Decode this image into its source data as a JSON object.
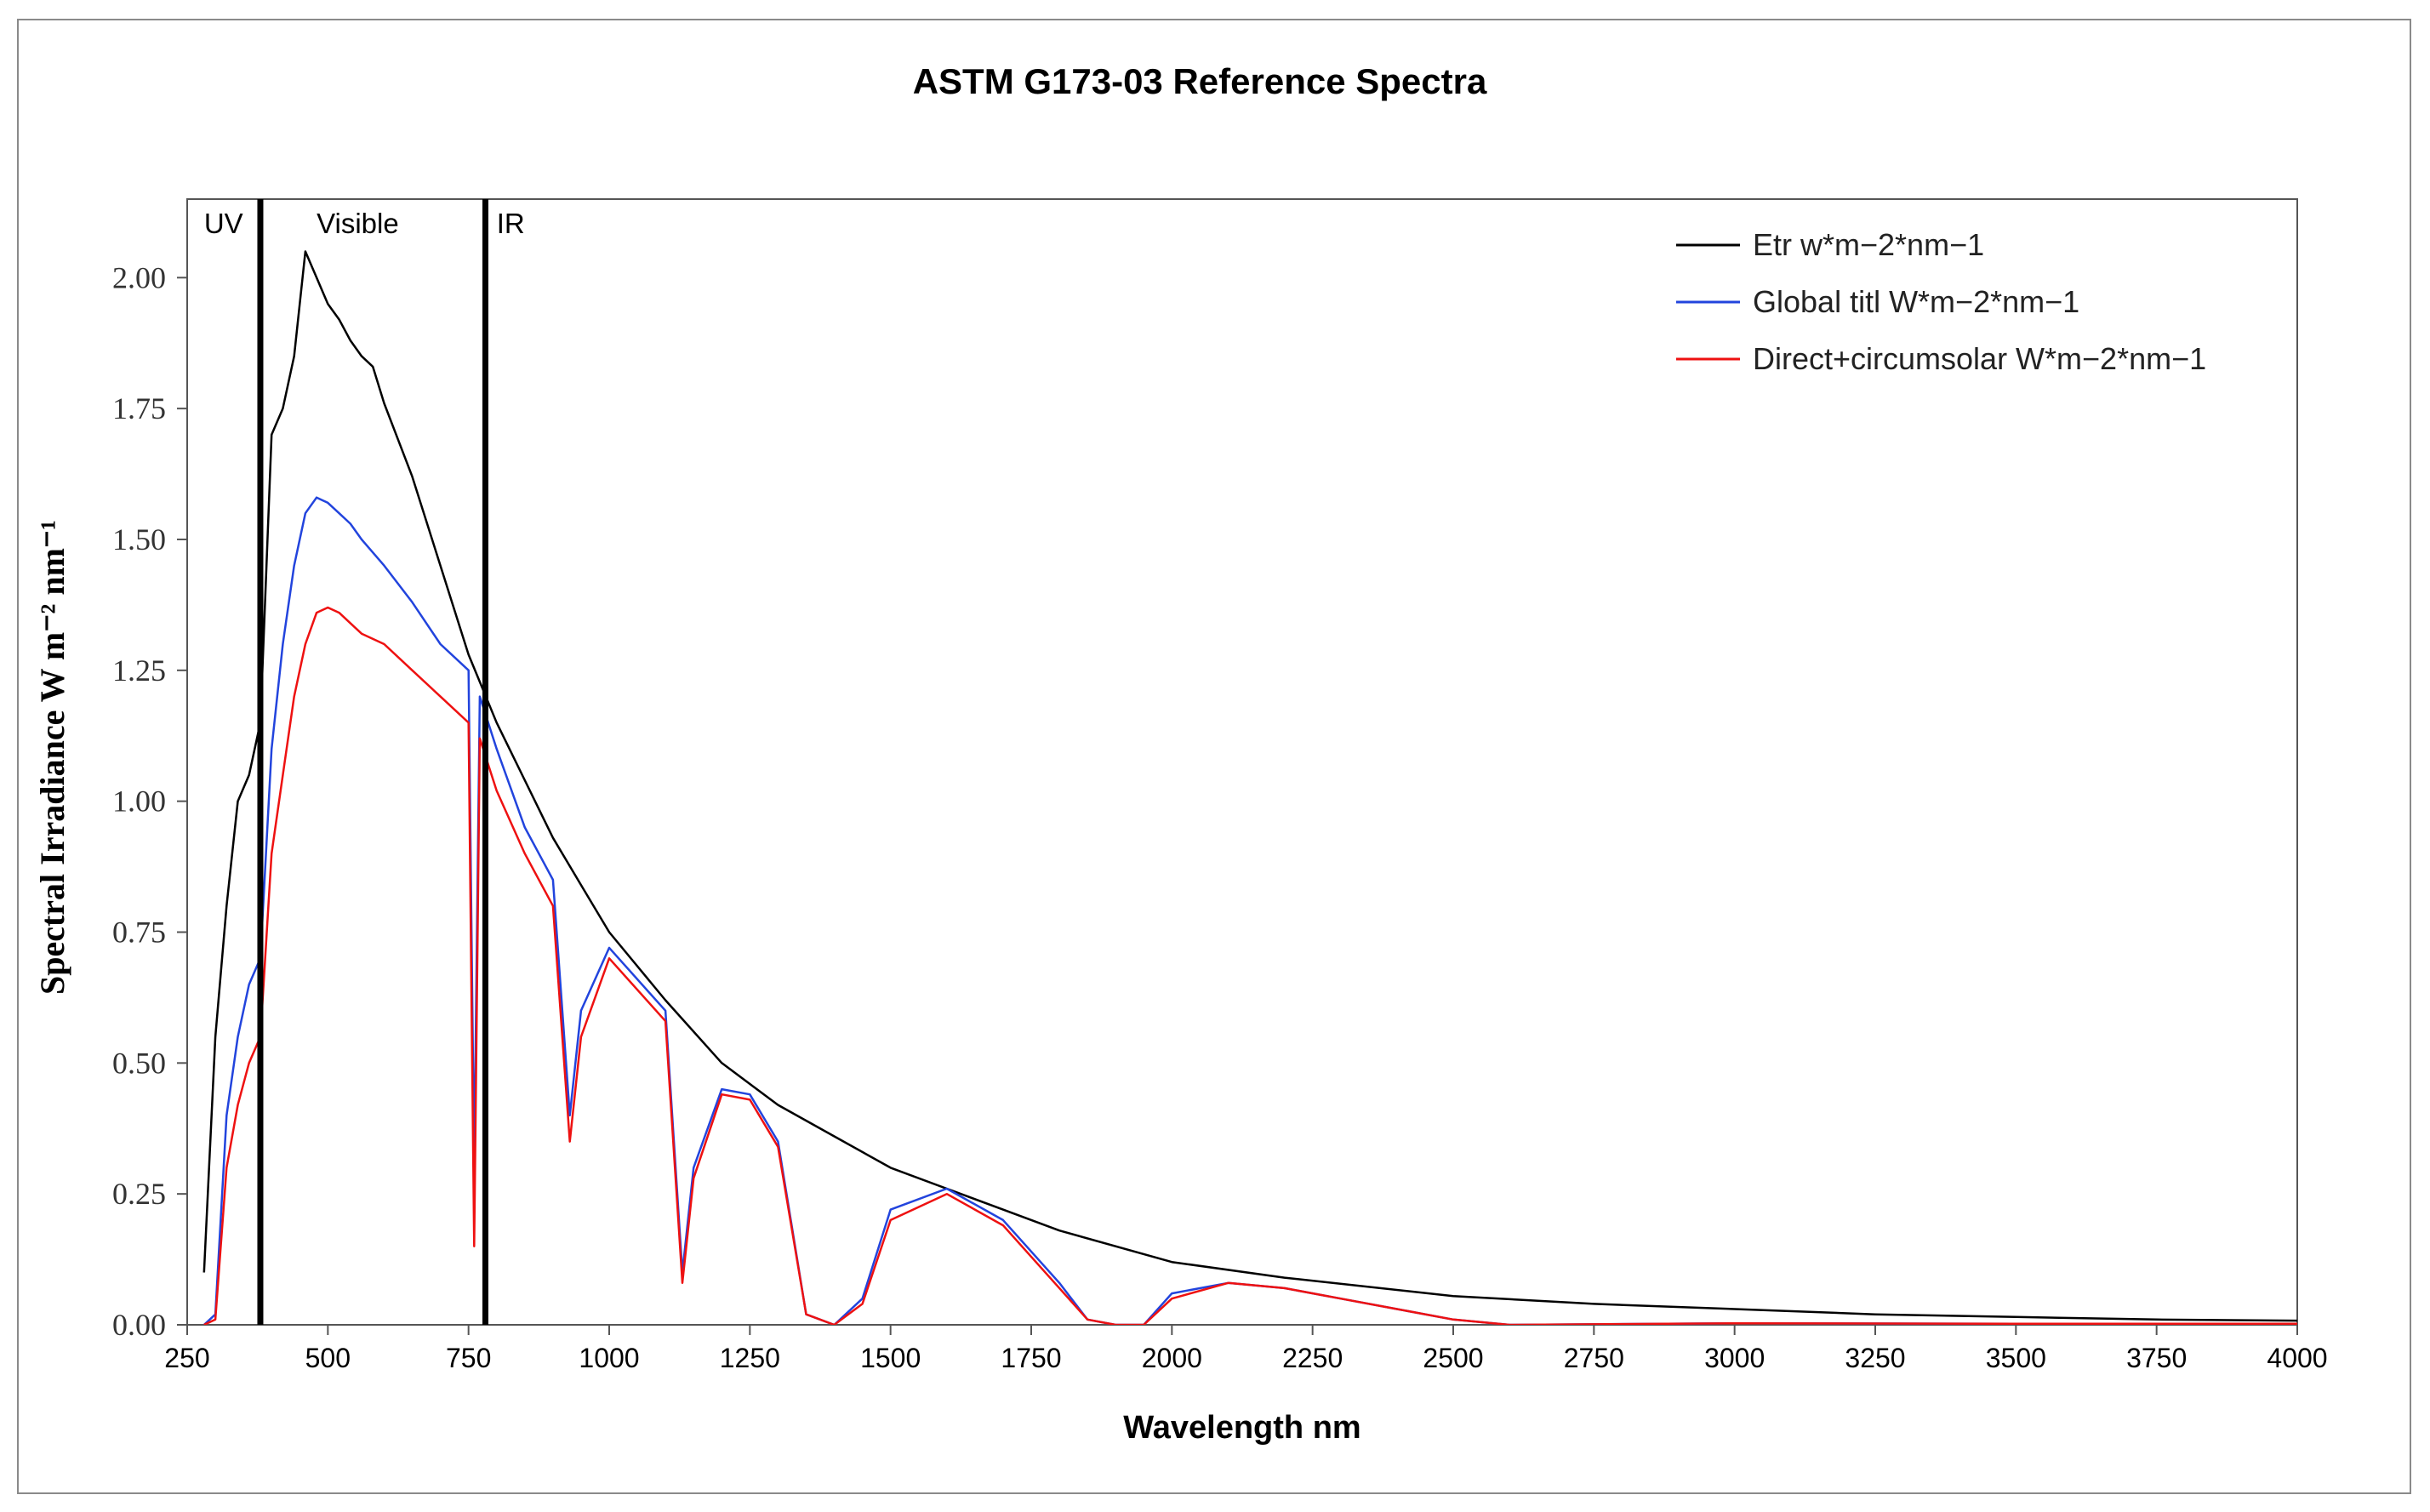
{
  "chart_data": {
    "type": "line",
    "title": "ASTM G173-03 Reference Spectra",
    "xlabel": "Wavelength nm",
    "ylabel": "Spectral Irradiance W m⁻² nm⁻¹",
    "xlim": [
      250,
      4000
    ],
    "ylim": [
      0,
      2.15
    ],
    "xticks": [
      "250",
      "500",
      "750",
      "1000",
      "1250",
      "1500",
      "1750",
      "2000",
      "2250",
      "2500",
      "2750",
      "3000",
      "3250",
      "3500",
      "3750",
      "4000"
    ],
    "yticks": [
      "0.00",
      "0.25",
      "0.50",
      "0.75",
      "1.00",
      "1.25",
      "1.50",
      "1.75",
      "2.00"
    ],
    "grid": false,
    "legend_position": "top-right",
    "region_dividers": [
      380,
      780
    ],
    "regions": [
      {
        "label": "UV",
        "x": 280
      },
      {
        "label": "Visible",
        "x": 480
      },
      {
        "label": "IR",
        "x": 800
      }
    ],
    "series": [
      {
        "name": "Etr w*m−2*nm−1",
        "color": "#000000",
        "x": [
          280,
          300,
          320,
          340,
          360,
          380,
          400,
          420,
          440,
          460,
          480,
          500,
          520,
          540,
          560,
          580,
          600,
          650,
          700,
          750,
          800,
          850,
          900,
          950,
          1000,
          1100,
          1200,
          1300,
          1400,
          1500,
          1600,
          1700,
          1800,
          2000,
          2200,
          2500,
          2750,
          3000,
          3250,
          3500,
          3750,
          4000
        ],
        "values": [
          0.1,
          0.55,
          0.8,
          1.0,
          1.05,
          1.15,
          1.7,
          1.75,
          1.85,
          2.05,
          2.0,
          1.95,
          1.92,
          1.88,
          1.85,
          1.83,
          1.76,
          1.62,
          1.45,
          1.28,
          1.15,
          1.04,
          0.93,
          0.84,
          0.75,
          0.62,
          0.5,
          0.42,
          0.36,
          0.3,
          0.26,
          0.22,
          0.18,
          0.12,
          0.09,
          0.055,
          0.04,
          0.03,
          0.02,
          0.015,
          0.01,
          0.008
        ]
      },
      {
        "name": "Global titl W*m−2*nm−1",
        "color": "#2244dd",
        "x": [
          280,
          300,
          320,
          340,
          360,
          380,
          400,
          420,
          440,
          460,
          480,
          500,
          520,
          540,
          560,
          600,
          650,
          700,
          750,
          760,
          770,
          800,
          850,
          900,
          930,
          950,
          1000,
          1100,
          1130,
          1150,
          1200,
          1250,
          1300,
          1350,
          1400,
          1450,
          1500,
          1600,
          1700,
          1800,
          1850,
          1900,
          1950,
          2000,
          2100,
          2200,
          2300,
          2400,
          2500,
          2600,
          3000,
          3500,
          4000
        ],
        "values": [
          0,
          0.02,
          0.4,
          0.55,
          0.65,
          0.7,
          1.1,
          1.3,
          1.45,
          1.55,
          1.58,
          1.57,
          1.55,
          1.53,
          1.5,
          1.45,
          1.38,
          1.3,
          1.25,
          0.3,
          1.2,
          1.1,
          0.95,
          0.85,
          0.4,
          0.6,
          0.72,
          0.6,
          0.1,
          0.3,
          0.45,
          0.44,
          0.35,
          0.02,
          0,
          0.05,
          0.22,
          0.26,
          0.2,
          0.08,
          0.01,
          0,
          0,
          0.06,
          0.08,
          0.07,
          0.05,
          0.03,
          0.01,
          0,
          0.003,
          0.002,
          0.002
        ]
      },
      {
        "name": "Direct+circumsolar W*m−2*nm−1",
        "color": "#ee1111",
        "x": [
          280,
          300,
          320,
          340,
          360,
          380,
          400,
          420,
          440,
          460,
          480,
          500,
          520,
          540,
          560,
          600,
          650,
          700,
          750,
          760,
          770,
          800,
          850,
          900,
          930,
          950,
          1000,
          1100,
          1130,
          1150,
          1200,
          1250,
          1300,
          1350,
          1400,
          1450,
          1500,
          1600,
          1700,
          1800,
          1850,
          1900,
          1950,
          2000,
          2100,
          2200,
          2300,
          2400,
          2500,
          2600,
          3000,
          3500,
          4000
        ],
        "values": [
          0,
          0.01,
          0.3,
          0.42,
          0.5,
          0.55,
          0.9,
          1.05,
          1.2,
          1.3,
          1.36,
          1.37,
          1.36,
          1.34,
          1.32,
          1.3,
          1.25,
          1.2,
          1.15,
          0.15,
          1.12,
          1.02,
          0.9,
          0.8,
          0.35,
          0.55,
          0.7,
          0.58,
          0.08,
          0.28,
          0.44,
          0.43,
          0.34,
          0.02,
          0,
          0.04,
          0.2,
          0.25,
          0.19,
          0.07,
          0.01,
          0,
          0,
          0.05,
          0.08,
          0.07,
          0.05,
          0.03,
          0.01,
          0,
          0.003,
          0.002,
          0.002
        ]
      }
    ]
  }
}
